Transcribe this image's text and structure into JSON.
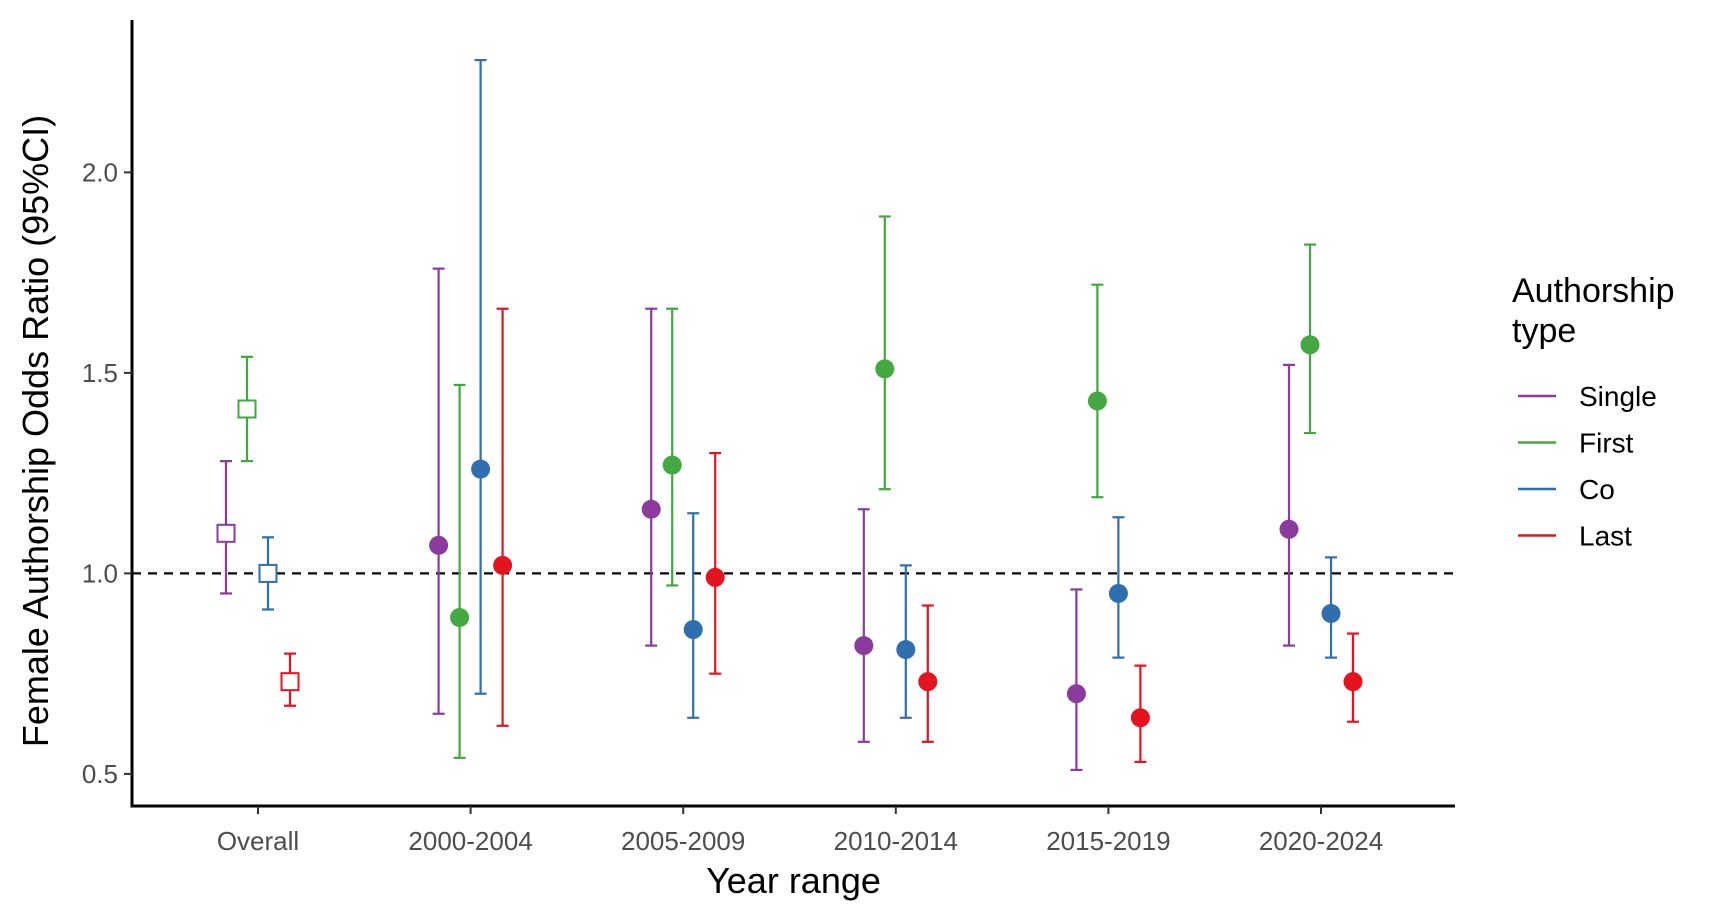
{
  "chart_data": {
    "type": "scatter",
    "subtype": "point-range with error bars",
    "xlabel": "Year range",
    "ylabel": "Female Authorship Odds Ratio (95%CI)",
    "categories": [
      "Overall",
      "2000-2004",
      "2005-2009",
      "2010-2014",
      "2015-2019",
      "2020-2024"
    ],
    "y_ticks": [
      0.5,
      1.0,
      1.5,
      2.0
    ],
    "y_tick_labels": [
      "0.5",
      "1.0",
      "1.5",
      "2.0"
    ],
    "ylim": [
      0.42,
      2.38
    ],
    "reference_line": {
      "y": 1.0,
      "style": "dashed",
      "color": "#000000"
    },
    "grid": false,
    "legend": {
      "title_lines": [
        "Authorship",
        "type"
      ],
      "position": "right"
    },
    "marker_note": "Overall uses hollow squares; year ranges use filled circles",
    "series": [
      {
        "name": "Single",
        "color": "#8b3a9e",
        "points": [
          {
            "category": "Overall",
            "or": 1.1,
            "lo": 0.95,
            "hi": 1.28
          },
          {
            "category": "2000-2004",
            "or": 1.07,
            "lo": 0.65,
            "hi": 1.76
          },
          {
            "category": "2005-2009",
            "or": 1.16,
            "lo": 0.82,
            "hi": 1.66
          },
          {
            "category": "2010-2014",
            "or": 0.82,
            "lo": 0.58,
            "hi": 1.16
          },
          {
            "category": "2015-2019",
            "or": 0.7,
            "lo": 0.51,
            "hi": 0.96
          },
          {
            "category": "2020-2024",
            "or": 1.11,
            "lo": 0.82,
            "hi": 1.52
          }
        ]
      },
      {
        "name": "First",
        "color": "#43a83f",
        "points": [
          {
            "category": "Overall",
            "or": 1.41,
            "lo": 1.28,
            "hi": 1.54
          },
          {
            "category": "2000-2004",
            "or": 0.89,
            "lo": 0.54,
            "hi": 1.47
          },
          {
            "category": "2005-2009",
            "or": 1.27,
            "lo": 0.97,
            "hi": 1.66
          },
          {
            "category": "2010-2014",
            "or": 1.51,
            "lo": 1.21,
            "hi": 1.89
          },
          {
            "category": "2015-2019",
            "or": 1.43,
            "lo": 1.19,
            "hi": 1.72
          },
          {
            "category": "2020-2024",
            "or": 1.57,
            "lo": 1.35,
            "hi": 1.82
          }
        ]
      },
      {
        "name": "Co",
        "color": "#2f6fb0",
        "points": [
          {
            "category": "Overall",
            "or": 1.0,
            "lo": 0.91,
            "hi": 1.09
          },
          {
            "category": "2000-2004",
            "or": 1.26,
            "lo": 0.7,
            "hi": 2.28
          },
          {
            "category": "2005-2009",
            "or": 0.86,
            "lo": 0.64,
            "hi": 1.15
          },
          {
            "category": "2010-2014",
            "or": 0.81,
            "lo": 0.64,
            "hi": 1.02
          },
          {
            "category": "2015-2019",
            "or": 0.95,
            "lo": 0.79,
            "hi": 1.14
          },
          {
            "category": "2020-2024",
            "or": 0.9,
            "lo": 0.79,
            "hi": 1.04
          }
        ]
      },
      {
        "name": "Last",
        "color": "#e3141f",
        "points": [
          {
            "category": "Overall",
            "or": 0.73,
            "lo": 0.67,
            "hi": 0.8
          },
          {
            "category": "2000-2004",
            "or": 1.02,
            "lo": 0.62,
            "hi": 1.66
          },
          {
            "category": "2005-2009",
            "or": 0.99,
            "lo": 0.75,
            "hi": 1.3
          },
          {
            "category": "2010-2014",
            "or": 0.73,
            "lo": 0.58,
            "hi": 0.92
          },
          {
            "category": "2015-2019",
            "or": 0.64,
            "lo": 0.53,
            "hi": 0.77
          },
          {
            "category": "2020-2024",
            "or": 0.73,
            "lo": 0.63,
            "hi": 0.85
          }
        ]
      }
    ]
  }
}
